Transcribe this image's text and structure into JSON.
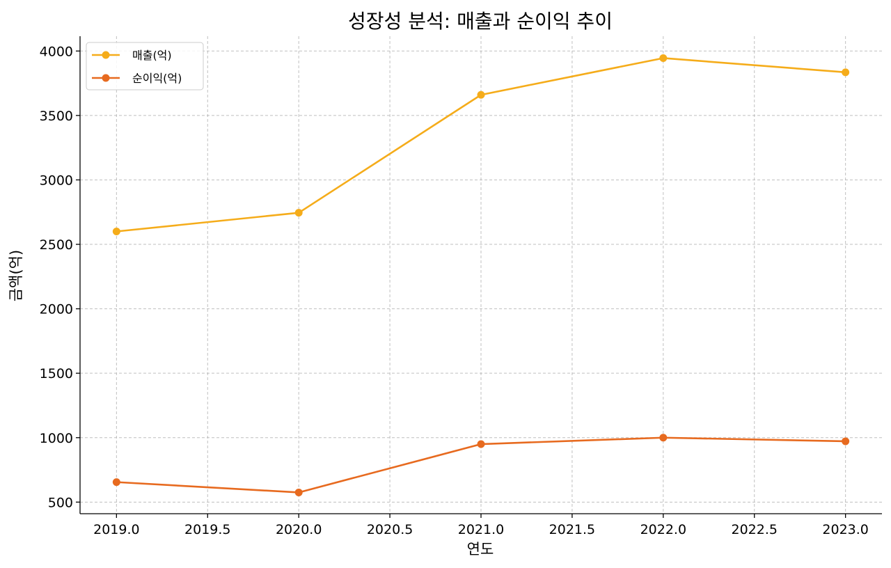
{
  "chart_data": {
    "type": "line",
    "title": "성장성 분석: 매출과 순이익 추이",
    "xlabel": "연도",
    "ylabel": "금액(억)",
    "x": [
      2019,
      2020,
      2021,
      2022,
      2023
    ],
    "xlim": [
      2018.8,
      2023.2
    ],
    "ylim": [
      410,
      4115
    ],
    "xticks": [
      2019.0,
      2019.5,
      2020.0,
      2020.5,
      2021.0,
      2021.5,
      2022.0,
      2022.5,
      2023.0
    ],
    "xtick_labels": [
      "2019.0",
      "2019.5",
      "2020.0",
      "2020.5",
      "2021.0",
      "2021.5",
      "2022.0",
      "2022.5",
      "2023.0"
    ],
    "yticks": [
      500,
      1000,
      1500,
      2000,
      2500,
      3000,
      3500,
      4000
    ],
    "ytick_labels": [
      "500",
      "1000",
      "1500",
      "2000",
      "2500",
      "3000",
      "3500",
      "4000"
    ],
    "grid": true,
    "legend_position": "top-left",
    "series": [
      {
        "name": "매출(억)",
        "color": "#f5ac1a",
        "values": [
          2600,
          2745,
          3660,
          3945,
          3835
        ]
      },
      {
        "name": "순이익(억)",
        "color": "#e76a1f",
        "values": [
          655,
          575,
          950,
          1000,
          972
        ]
      }
    ]
  }
}
